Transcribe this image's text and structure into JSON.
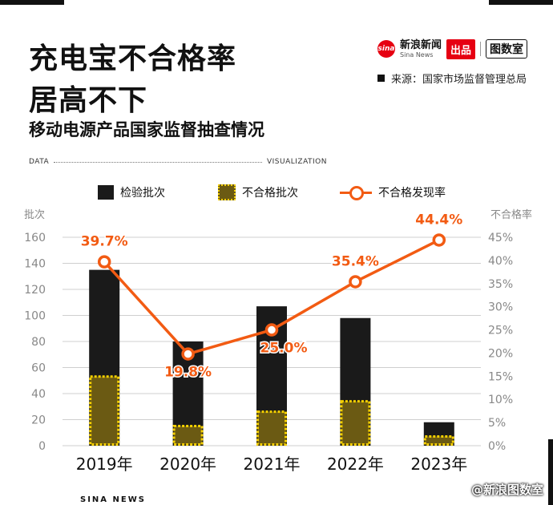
{
  "header": {
    "title_line1": "充电宝不合格率",
    "title_line2": "居高不下",
    "subtitle": "移动电源产品国家监督抽查情况"
  },
  "brand": {
    "logo_text": "sina",
    "name_cn": "新浪新闻",
    "name_en": "Sina News",
    "badge": "出品",
    "lab": "图数室"
  },
  "source": "来源：国家市场监督管理总局",
  "rule": {
    "left": "DATA",
    "right": "VISUALIZATION"
  },
  "footer": {
    "left": "SINA NEWS",
    "right": "@新浪图数室"
  },
  "colors": {
    "bar_total": "#1a1a1a",
    "bar_fail": "#6b5a13",
    "bar_fail_border": "#f5d000",
    "line": "#f25b13"
  },
  "chart_data": {
    "type": "bar",
    "categories": [
      "2019年",
      "2020年",
      "2021年",
      "2022年",
      "2023年"
    ],
    "series": [
      {
        "name": "检验批次",
        "type": "bar",
        "values": [
          135,
          80,
          107,
          98,
          18
        ]
      },
      {
        "name": "不合格批次",
        "type": "bar",
        "values": [
          54,
          16,
          27,
          35,
          8
        ]
      },
      {
        "name": "不合格发现率",
        "type": "line",
        "values": [
          39.7,
          19.8,
          25.0,
          35.4,
          44.4
        ],
        "labels": [
          "39.7%",
          "19.8%",
          "25.0%",
          "35.4%",
          "44.4%"
        ]
      }
    ],
    "y_left": {
      "label": "批次",
      "ylim": [
        0,
        160
      ],
      "ticks": [
        "0",
        "20",
        "40",
        "60",
        "80",
        "100",
        "120",
        "140",
        "160"
      ]
    },
    "y_right": {
      "label": "不合格率",
      "ylim": [
        0,
        45
      ],
      "ticks": [
        "0%",
        "5%",
        "10%",
        "15%",
        "20%",
        "25%",
        "30%",
        "35%",
        "40%",
        "45%"
      ]
    },
    "grid": true,
    "legend": "top"
  }
}
